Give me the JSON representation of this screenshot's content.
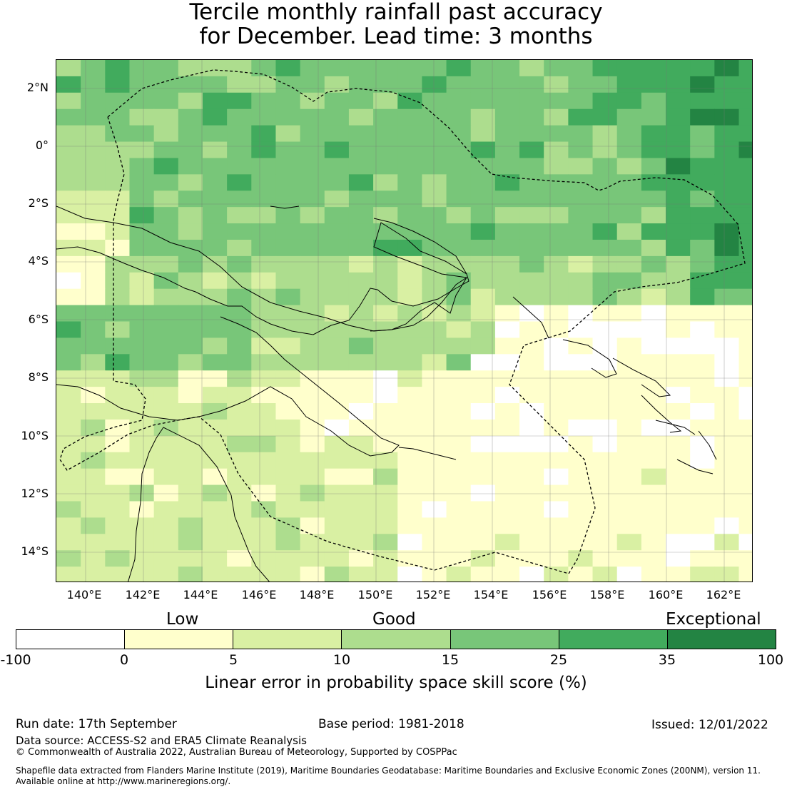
{
  "title": {
    "line1": "Tercile monthly rainfall past accuracy",
    "line2": "for December. Lead time: 3 months"
  },
  "map": {
    "lat_labels": [
      "2°N",
      "0°",
      "2°S",
      "4°S",
      "6°S",
      "8°S",
      "10°S",
      "12°S",
      "14°S"
    ],
    "lon_labels": [
      "140°E",
      "142°E",
      "144°E",
      "146°E",
      "148°E",
      "150°E",
      "152°E",
      "154°E",
      "156°E",
      "158°E",
      "160°E",
      "162°E"
    ]
  },
  "colorbar": {
    "category_labels": [
      "Low",
      "Good",
      "Exceptional"
    ],
    "ticks": [
      "-100",
      "0",
      "5",
      "10",
      "15",
      "25",
      "35",
      "100"
    ],
    "colors": [
      "#ffffff",
      "#ffffcc",
      "#d9f0a3",
      "#addd8e",
      "#78c679",
      "#41ab5d",
      "#238443"
    ],
    "title": "Linear error in probability space skill score (%)"
  },
  "footer": {
    "run_date": "Run date: 17th September",
    "base_period": "Base period: 1981-2018",
    "issued": "Issued: 12/01/2022",
    "data_source": "Data source: ACCESS-S2 and ERA5 Climate Reanalysis",
    "copyright": "© Commonwealth of Australia 2022, Australian Bureau of Meteorology, Supported by COSPPac",
    "shapefile_line1": "Shapefile data extracted from Flanders Marine Institute (2019), Maritime Boundaries Geodatabase: Maritime Boundaries and Exclusive Economic Zones (200NM), version 11.",
    "shapefile_line2": "Available online at http://www.marineregions.org/."
  }
}
